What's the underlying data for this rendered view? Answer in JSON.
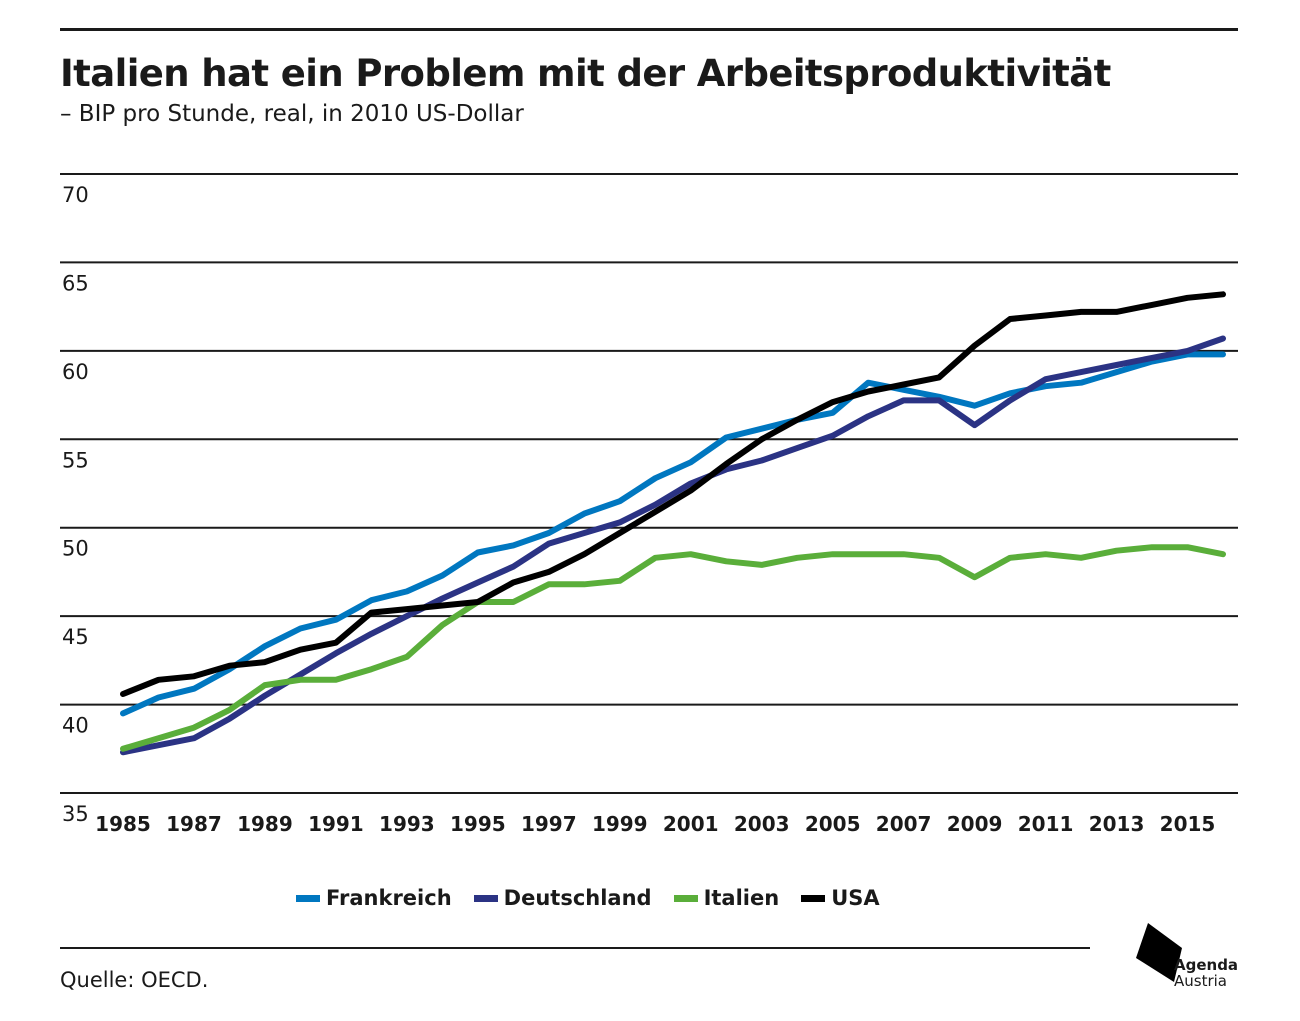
{
  "header": {
    "title": "Italien hat ein Problem mit der Arbeitsproduktivität",
    "subtitle": "– BIP pro Stunde, real, in 2010 US-Dollar"
  },
  "chart_data": {
    "type": "line",
    "title": "Italien hat ein Problem mit der Arbeitsproduktivität",
    "subtitle": "– BIP pro Stunde, real, in 2010 US-Dollar",
    "xlabel": "",
    "ylabel": "",
    "ylim": [
      35,
      70
    ],
    "y_ticks": [
      70,
      65,
      60,
      55,
      50,
      45,
      40,
      35
    ],
    "x_ticks": [
      1985,
      1987,
      1989,
      1991,
      1993,
      1995,
      1997,
      1999,
      2001,
      2003,
      2005,
      2007,
      2009,
      2011,
      2013,
      2015
    ],
    "x": [
      1985,
      1986,
      1987,
      1988,
      1989,
      1990,
      1991,
      1992,
      1993,
      1994,
      1995,
      1996,
      1997,
      1998,
      1999,
      2000,
      2001,
      2002,
      2003,
      2004,
      2005,
      2006,
      2007,
      2008,
      2009,
      2010,
      2011,
      2012,
      2013,
      2014,
      2015,
      2016
    ],
    "grid": true,
    "legend_position": "bottom",
    "series": [
      {
        "name": "Frankreich",
        "color": "#0077c0",
        "values": [
          39.5,
          40.4,
          40.9,
          42.0,
          43.3,
          44.3,
          44.8,
          45.9,
          46.4,
          47.3,
          48.6,
          49.0,
          49.7,
          50.8,
          51.5,
          52.8,
          53.7,
          55.1,
          55.6,
          56.1,
          56.5,
          58.2,
          57.8,
          57.4,
          56.9,
          57.6,
          58.0,
          58.2,
          58.8,
          59.4,
          59.8,
          59.8
        ]
      },
      {
        "name": "Deutschland",
        "color": "#2b3384",
        "values": [
          37.3,
          37.7,
          38.1,
          39.2,
          40.5,
          41.7,
          42.9,
          44.0,
          45.0,
          46.0,
          46.9,
          47.8,
          49.1,
          49.7,
          50.3,
          51.3,
          52.5,
          53.3,
          53.8,
          54.5,
          55.2,
          56.3,
          57.2,
          57.2,
          55.8,
          57.2,
          58.4,
          58.8,
          59.2,
          59.6,
          60.0,
          60.7
        ]
      },
      {
        "name": "Italien",
        "color": "#5aae3a",
        "values": [
          37.5,
          38.1,
          38.7,
          39.7,
          41.1,
          41.4,
          41.4,
          42.0,
          42.7,
          44.5,
          45.8,
          45.8,
          46.8,
          46.8,
          47.0,
          48.3,
          48.5,
          48.1,
          47.9,
          48.3,
          48.5,
          48.5,
          48.5,
          48.3,
          47.2,
          48.3,
          48.5,
          48.3,
          48.7,
          48.9,
          48.9,
          48.5
        ]
      },
      {
        "name": "USA",
        "color": "#000000",
        "values": [
          40.6,
          41.4,
          41.6,
          42.2,
          42.4,
          43.1,
          43.5,
          45.2,
          45.4,
          45.6,
          45.8,
          46.9,
          47.5,
          48.5,
          49.7,
          50.9,
          52.1,
          53.6,
          55.0,
          56.1,
          57.1,
          57.7,
          58.1,
          58.5,
          60.3,
          61.8,
          62.0,
          62.2,
          62.2,
          62.6,
          63.0,
          63.2
        ]
      }
    ]
  },
  "legend": {
    "items": [
      {
        "label": "Frankreich",
        "color": "#0077c0"
      },
      {
        "label": "Deutschland",
        "color": "#2b3384"
      },
      {
        "label": "Italien",
        "color": "#5aae3a"
      },
      {
        "label": "USA",
        "color": "#000000"
      }
    ]
  },
  "footer": {
    "source": "Quelle: OECD.",
    "logo_line1": "Agenda",
    "logo_line2": "Austria"
  }
}
